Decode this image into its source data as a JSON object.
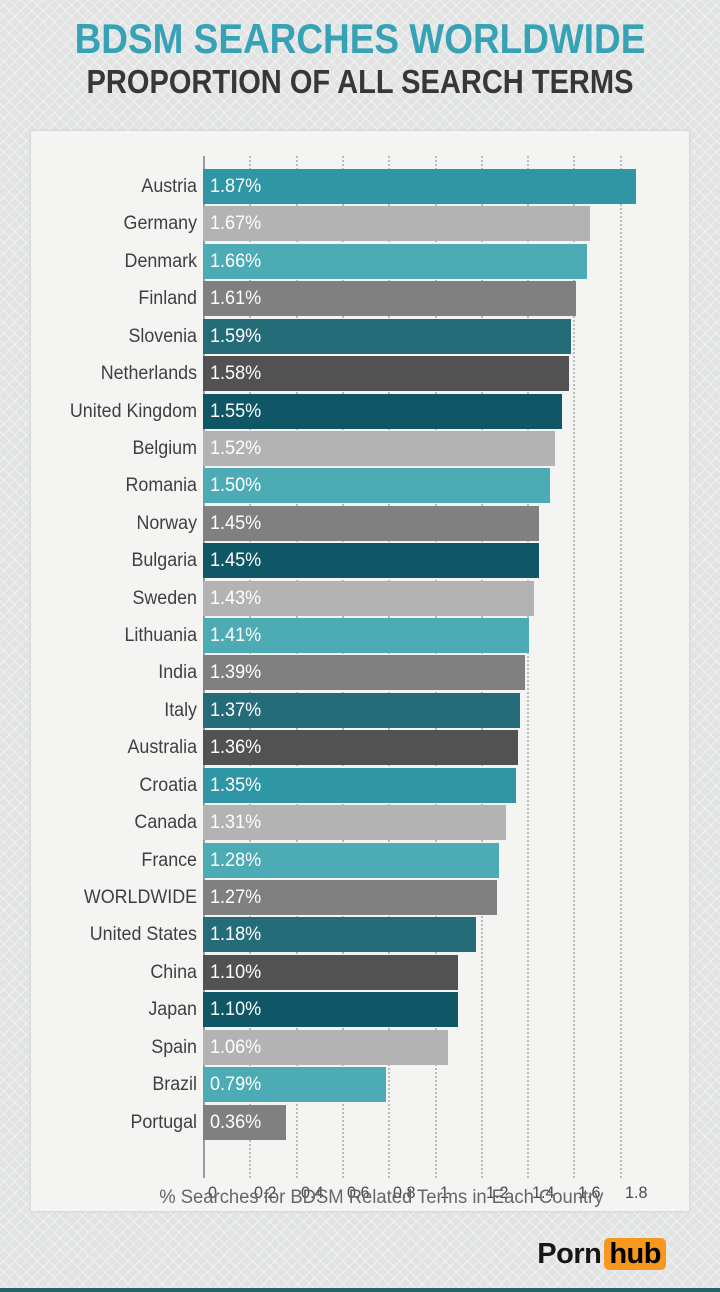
{
  "header": {
    "title": "BDSM SEARCHES WORLDWIDE",
    "subtitle": "PROPORTION OF ALL SEARCH TERMS"
  },
  "chart_data": {
    "type": "bar",
    "orientation": "horizontal",
    "title": "BDSM SEARCHES WORLDWIDE",
    "subtitle": "PROPORTION OF ALL SEARCH TERMS",
    "xlabel": "% Searches for BDSM Related Terms in Each Country",
    "xlim": [
      0,
      1.9
    ],
    "x_ticks": [
      0,
      0.2,
      0.4,
      0.6,
      0.8,
      1,
      1.2,
      1.4,
      1.6,
      1.8
    ],
    "x_tick_labels": [
      "0",
      "0.2",
      "0.4",
      "0.6",
      "0.8",
      "1",
      "1.2",
      "1.4",
      "1.6",
      "1.8"
    ],
    "grid": "dotted-vertical",
    "legend": "none",
    "categories": [
      "Austria",
      "Germany",
      "Denmark",
      "Finland",
      "Slovenia",
      "Netherlands",
      "United Kingdom",
      "Belgium",
      "Romania",
      "Norway",
      "Bulgaria",
      "Sweden",
      "Lithuania",
      "India",
      "Italy",
      "Australia",
      "Croatia",
      "Canada",
      "France",
      "WORLDWIDE",
      "United States",
      "China",
      "Japan",
      "Spain",
      "Brazil",
      "Portugal"
    ],
    "values": [
      1.87,
      1.67,
      1.66,
      1.61,
      1.59,
      1.58,
      1.55,
      1.52,
      1.5,
      1.45,
      1.45,
      1.43,
      1.41,
      1.39,
      1.37,
      1.36,
      1.35,
      1.31,
      1.28,
      1.27,
      1.18,
      1.1,
      1.1,
      1.06,
      0.79,
      0.36
    ],
    "value_labels": [
      "1.87%",
      "1.67%",
      "1.66%",
      "1.61%",
      "1.59%",
      "1.58%",
      "1.55%",
      "1.52%",
      "1.50%",
      "1.45%",
      "1.45%",
      "1.43%",
      "1.41%",
      "1.39%",
      "1.37%",
      "1.36%",
      "1.35%",
      "1.31%",
      "1.28%",
      "1.27%",
      "1.18%",
      "1.10%",
      "1.10%",
      "1.06%",
      "0.79%",
      "0.36%"
    ],
    "bar_colors": [
      "#2e96a4",
      "#b3b3b3",
      "#4dabb6",
      "#808080",
      "#256c79",
      "#525252",
      "#0f5766",
      "#b3b3b3",
      "#4dabb6",
      "#808080",
      "#0f5766",
      "#b3b3b3",
      "#4dabb6",
      "#808080",
      "#256c79",
      "#525252",
      "#2e96a4",
      "#b3b3b3",
      "#4dabb6",
      "#808080",
      "#256c79",
      "#525252",
      "#0f5766",
      "#b3b3b3",
      "#4dabb6",
      "#808080"
    ]
  },
  "footer": {
    "logo_part1": "Porn",
    "logo_part2": "hub"
  },
  "colors": {
    "title_teal": "#37a2b5",
    "subtitle_dark": "#373737",
    "panel_background": "#f4f4f3",
    "page_background": "#e2e4e3",
    "teal_mid": "#2e96a4",
    "teal_light": "#4dabb6",
    "teal_dark": "#256c79",
    "teal_darkest": "#0f5766",
    "gray_light": "#b3b3b3",
    "gray_mid": "#808080",
    "gray_dark": "#525252",
    "logo_orange": "#f7971d",
    "bottom_strip_teal": "#26616b"
  }
}
